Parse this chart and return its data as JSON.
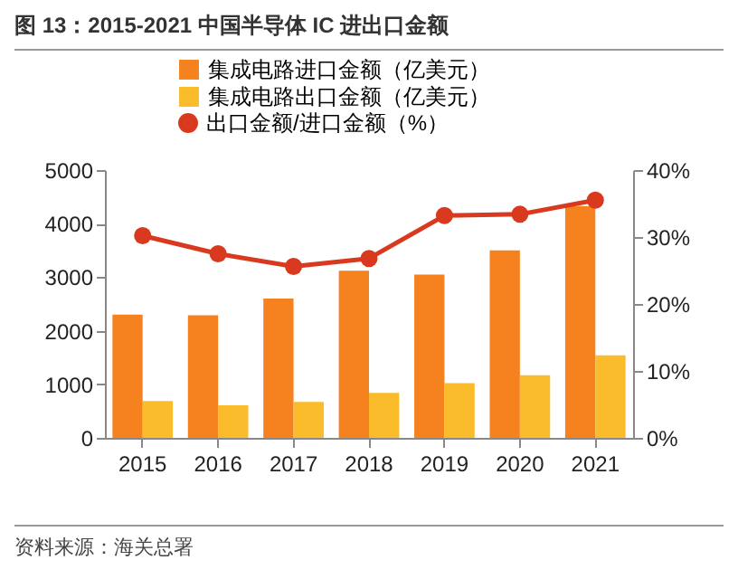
{
  "chart_data": {
    "type": "bar",
    "title": "图 13：2015-2021 中国半导体 IC 进出口金额",
    "categories": [
      "2015",
      "2016",
      "2017",
      "2018",
      "2019",
      "2020",
      "2021"
    ],
    "series": [
      {
        "name": "集成电路进口金额（亿美元）",
        "type": "bar",
        "color": "#f5821f",
        "values": [
          2300,
          2290,
          2600,
          3120,
          3050,
          3500,
          4330
        ]
      },
      {
        "name": "集成电路出口金额（亿美元）",
        "type": "bar",
        "color": "#fbbc2c",
        "values": [
          690,
          610,
          670,
          840,
          1020,
          1170,
          1540
        ]
      },
      {
        "name": "出口金额/进口金额（%）",
        "type": "line",
        "axis": "y2",
        "color": "#d9391f",
        "marker": "circle",
        "values": [
          30.2,
          27.5,
          25.6,
          26.8,
          33.2,
          33.4,
          35.5
        ]
      }
    ],
    "ylim": [
      0,
      5000
    ],
    "yticks": [
      0,
      1000,
      2000,
      3000,
      4000,
      5000
    ],
    "y2lim": [
      0,
      40
    ],
    "y2ticks": [
      {
        "value": 0,
        "label": "0%"
      },
      {
        "value": 10,
        "label": "10%"
      },
      {
        "value": 20,
        "label": "20%"
      },
      {
        "value": 30,
        "label": "30%"
      },
      {
        "value": 40,
        "label": "40%"
      }
    ],
    "grid": false,
    "legend": "top",
    "annotations": [
      "资料来源：海关总署"
    ]
  }
}
